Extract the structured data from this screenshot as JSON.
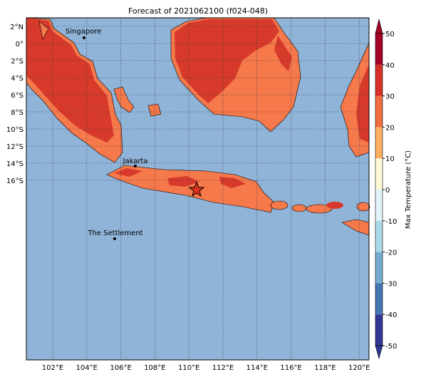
{
  "title": "Forecast of 2021062100 (f024-048)",
  "map": {
    "lat_labels": [
      "2°N",
      "0°",
      "2°S",
      "4°S",
      "6°S",
      "8°S",
      "10°S",
      "12°S",
      "14°S",
      "16°S"
    ],
    "lon_labels": [
      "102°E",
      "104°E",
      "106°E",
      "108°E",
      "110°E",
      "112°E",
      "114°E",
      "116°E",
      "118°E",
      "120°E"
    ],
    "places": [
      {
        "label": "Singapore"
      },
      {
        "label": "Jakarta"
      },
      {
        "label": "The Settlement"
      }
    ]
  },
  "colorbar": {
    "label": "Max Temperature (°C)",
    "ticks": [
      -50,
      -40,
      -30,
      -20,
      -10,
      0,
      10,
      20,
      30,
      40,
      50
    ],
    "colors": [
      "#313695",
      "#4575b4",
      "#74add1",
      "#abd9e9",
      "#e0f3f8",
      "#fffbd8",
      "#fdae61",
      "#f46d43",
      "#d73027",
      "#a50026"
    ]
  }
}
